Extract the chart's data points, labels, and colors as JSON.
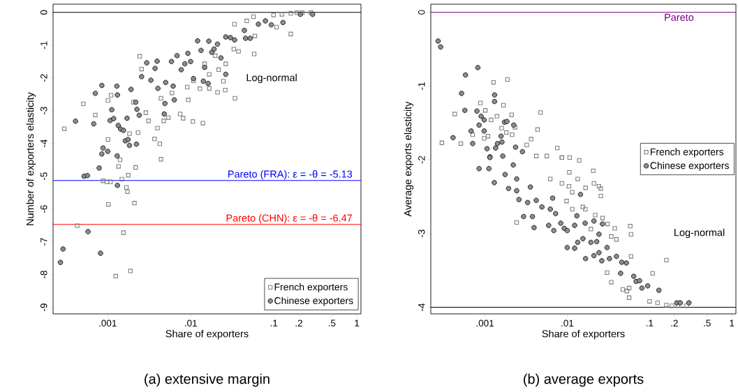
{
  "chart_data": [
    {
      "type": "scatter",
      "title": "(a) extensive margin",
      "xlabel": "Share of exporters",
      "ylabel": "Number of exporters elasticity",
      "log": "x",
      "grid": false,
      "legend": "bottom right",
      "xlim": [
        0.00022,
        1.12
      ],
      "ylim": [
        -9.2,
        0.25
      ],
      "xticks": [
        {
          "value": 0.001,
          "label": ".001"
        },
        {
          "value": 0.01,
          "label": ".01"
        },
        {
          "value": 0.1,
          "label": ".1"
        },
        {
          "value": 0.2,
          "label": ".2"
        },
        {
          "value": 0.5,
          "label": ".5"
        },
        1
      ],
      "yticks": [
        -9,
        -8,
        -7,
        -6,
        -5,
        -4,
        -3,
        -2,
        -1,
        0
      ],
      "ref_lines": [
        {
          "axis": "y",
          "value": 0,
          "color": "#000000"
        },
        {
          "axis": "y",
          "value": -5.13,
          "label": "Pareto (FRA): ε = -θ = -5.13",
          "color": "#0000ff"
        },
        {
          "axis": "y",
          "value": -6.47,
          "label": "Pareto (CHN): ε = -θ = -6.47",
          "color": "#ff0000"
        }
      ],
      "annotations": [
        "Log-normal"
      ],
      "series": [
        {
          "name": "French exporters",
          "color": "#7f7f7f",
          "marker": "square",
          "x": [
            0.0003,
            0.00051,
            0.00071,
            0.00101,
            0.0011,
            0.00101,
            0.00243,
            0.00256,
            0.00204,
            0.00183,
            0.00232,
            0.00288,
            0.0031,
            0.00366,
            0.00424,
            0.00397,
            0.00473,
            0.00538,
            0.00745,
            0.00811,
            0.00934,
            0.0106,
            0.014,
            0.00438,
            0.00594,
            0.00908,
            0.0108,
            0.0129,
            0.0167,
            0.0167,
            0.0147,
            0.0197,
            0.0217,
            0.0264,
            0.021,
            0.026,
            0.0247,
            0.0341,
            0.0337,
            0.033,
            0.0376,
            0.0472,
            0.0569,
            0.0592,
            0.058,
            0.0993,
            0.108,
            0.125,
            0.16,
            0.16,
            0.19,
            0.22,
            0.28,
            0.00043,
            0.00088,
            0.00098,
            0.00108,
            0.00102,
            0.00148,
            0.00168,
            0.00173,
            0.00177,
            0.0021,
            0.00155,
            0.00125,
            0.00188,
            0.00135,
            0.00217,
            0.00438,
            0.00141
          ],
          "values": [
            -3.55,
            -2.79,
            -3.13,
            -2.69,
            -2.53,
            -3.88,
            -1.34,
            -1.73,
            -2.74,
            -3.7,
            -3.67,
            -3.06,
            -3.31,
            -3.86,
            -4.01,
            -3.53,
            -3.31,
            -3.21,
            -3.1,
            -3.23,
            -2.67,
            -3.33,
            -3.38,
            -2.62,
            -2.46,
            -2.28,
            -2.09,
            -2.33,
            -2.32,
            -1.89,
            -1.57,
            -1.32,
            -1.75,
            -1.57,
            -2.44,
            -2.37,
            -2.1,
            -2.62,
            -0.36,
            -1.12,
            -1.19,
            -0.26,
            -0.13,
            -0.72,
            -1.27,
            -0.08,
            -0.45,
            -0.06,
            -0.66,
            -0.03,
            -0.01,
            -0.01,
            -0.01,
            -6.51,
            -5.14,
            -5.17,
            -5.17,
            -5.86,
            -5.09,
            -5.34,
            -5.47,
            -4.97,
            -5.82,
            -6.72,
            -8.05,
            -7.89,
            -4.7,
            -4.73,
            -4.48,
            -4.5
          ]
        },
        {
          "name": "Chinese exporters",
          "color": "#8c8c8c",
          "marker": "circle",
          "x": [
            0.00041,
            0.00068,
            0.00071,
            0.00085,
            0.00129,
            0.00131,
            0.00112,
            0.00107,
            0.00118,
            0.00134,
            0.00143,
            0.00155,
            0.00163,
            0.00176,
            0.00183,
            0.00222,
            0.00088,
            0.00085,
            0.001,
            0.0013,
            0.00171,
            0.00191,
            0.00218,
            0.00225,
            0.0024,
            0.00256,
            0.00295,
            0.00331,
            0.00372,
            0.00394,
            0.00403,
            0.0048,
            0.00489,
            0.00499,
            0.00586,
            0.00614,
            0.00634,
            0.00684,
            0.00769,
            0.00848,
            0.00923,
            0.00997,
            0.0108,
            0.0121,
            0.0133,
            0.0147,
            0.0165,
            0.0179,
            0.0191,
            0.021,
            0.0231,
            0.0264,
            0.0264,
            0.03,
            0.0337,
            0.0442,
            0.0457,
            0.052,
            0.0652,
            0.0792,
            0.0932,
            0.129,
            0.209,
            0.293,
            0.0142,
            0.0162,
            0.00027,
            0.00029,
            0.00058,
            0.00082,
            0.00052,
            0.00057,
            0.00079,
            0.00131
          ],
          "values": [
            -3.32,
            -3.4,
            -2.47,
            -2.23,
            -2.25,
            -2.52,
            -2.97,
            -3.3,
            -3.24,
            -3.45,
            -3.56,
            -3.6,
            -3.92,
            -3.88,
            -4.06,
            -4.02,
            -4.14,
            -4.32,
            -4.24,
            -4.38,
            -3.23,
            -2.35,
            -2.74,
            -2.96,
            -3.14,
            -1.96,
            -1.54,
            -2.07,
            -1.71,
            -1.49,
            -2.32,
            -3.1,
            -2.78,
            -2.14,
            -1.5,
            -2.25,
            -2.67,
            -1.32,
            -1.75,
            -1.57,
            -1.25,
            -1.5,
            -2.02,
            -0.87,
            -1.16,
            -1.68,
            -0.88,
            -1.22,
            -1.12,
            -0.97,
            -1.39,
            -0.75,
            -1.89,
            -0.77,
            -0.84,
            -0.55,
            -0.79,
            -0.79,
            -0.36,
            -0.26,
            -0.38,
            -0.31,
            -0.06,
            -0.06,
            -2.1,
            -2.17,
            -7.63,
            -7.22,
            -6.69,
            -7.35,
            -5.0,
            -4.98,
            -4.75,
            -5.28
          ]
        }
      ]
    },
    {
      "type": "scatter",
      "title": "(b) average exports",
      "xlabel": "Share of exporters",
      "ylabel": "Average exports elasticity",
      "log": "x",
      "grid": false,
      "legend": "right",
      "xlim": [
        0.00022,
        1.12
      ],
      "ylim": [
        -4.09,
        0.11
      ],
      "xticks": [
        {
          "value": 0.001,
          "label": ".001"
        },
        {
          "value": 0.01,
          "label": ".01"
        },
        {
          "value": 0.1,
          "label": ".1"
        },
        {
          "value": 0.2,
          "label": ".2"
        },
        {
          "value": 0.5,
          "label": ".5"
        },
        1
      ],
      "yticks": [
        -4,
        -3,
        -2,
        -1,
        0
      ],
      "ref_lines": [
        {
          "axis": "y",
          "value": 0,
          "label": "Pareto",
          "color": "#800080"
        },
        {
          "axis": "y",
          "value": -4,
          "color": "#000000"
        }
      ],
      "annotations": [
        "Log-normal"
      ],
      "series": [
        {
          "name": "French exporters",
          "color": "#7f7f7f",
          "marker": "square",
          "x": [
            0.0003,
            0.00043,
            0.00051,
            0.00071,
            0.00088,
            0.00101,
            0.00098,
            0.00109,
            0.00127,
            0.00188,
            0.00168,
            0.0014,
            0.00119,
            0.00211,
            0.0016,
            0.00182,
            0.00214,
            0.00232,
            0.00474,
            0.00436,
            0.00364,
            0.00322,
            0.00757,
            0.00421,
            0.00565,
            0.00861,
            0.0107,
            0.014,
            0.00243,
            0.00861,
            0.0106,
            0.00622,
            0.00861,
            0.0105,
            0.0115,
            0.0134,
            0.0167,
            0.0207,
            0.0211,
            0.0243,
            0.0256,
            0.0256,
            0.00982,
            0.0115,
            0.0155,
            0.0166,
            0.0219,
            0.0268,
            0.0309,
            0.0194,
            0.0378,
            0.0343,
            0.0396,
            0.0583,
            0.0596,
            0.0596,
            0.0305,
            0.0343,
            0.0474,
            0.053,
            0.0565,
            0.0565,
            0.1,
            0.109,
            0.125,
            0.16,
            0.16,
            0.187,
            0.221,
            0.282
          ],
          "values": [
            -1.77,
            -1.38,
            -1.78,
            -1.66,
            -1.23,
            -1.33,
            -1.71,
            -1.68,
            -0.95,
            -0.91,
            -1.26,
            -1.41,
            -1.46,
            -1.39,
            -1.57,
            -1.63,
            -1.66,
            -1.56,
            -1.36,
            -1.59,
            -1.72,
            -1.8,
            -1.84,
            -1.95,
            -1.95,
            -1.97,
            -1.97,
            -2.01,
            -2.85,
            -1.97,
            -2.17,
            -2.26,
            -2.32,
            -2.36,
            -2.44,
            -2.26,
            -2.38,
            -2.15,
            -2.32,
            -2.36,
            -2.39,
            -2.49,
            -2.56,
            -2.67,
            -2.64,
            -2.67,
            -2.75,
            -2.79,
            -2.87,
            -2.94,
            -2.93,
            -3.04,
            -3.08,
            -2.9,
            -3.01,
            -3.31,
            -3.53,
            -3.66,
            -3.76,
            -3.78,
            -3.74,
            -3.87,
            -3.92,
            -3.54,
            -3.94,
            -3.36,
            -3.97,
            -3.98,
            -3.98,
            -3.98
          ]
        },
        {
          "name": "Chinese exporters",
          "color": "#8c8c8c",
          "marker": "circle",
          "x": [
            0.00027,
            0.00029,
            0.00082,
            0.00058,
            0.00052,
            0.00057,
            0.00041,
            0.00071,
            0.00068,
            0.0008,
            0.00085,
            0.0009,
            0.00098,
            0.00098,
            0.00131,
            0.00131,
            0.00106,
            0.00135,
            0.00142,
            0.00157,
            0.00161,
            0.00173,
            0.00185,
            0.00224,
            0.00236,
            0.00286,
            0.00115,
            0.00085,
            0.00112,
            0.0013,
            0.00115,
            0.00165,
            0.00176,
            0.00194,
            0.00221,
            0.00243,
            0.00243,
            0.00259,
            0.00295,
            0.00378,
            0.00395,
            0.0033,
            0.00357,
            0.0042,
            0.00493,
            0.00595,
            0.00687,
            0.00623,
            0.00665,
            0.00723,
            0.00834,
            0.00919,
            0.01,
            0.01,
            0.0123,
            0.0123,
            0.0134,
            0.0145,
            0.0131,
            0.0155,
            0.0167,
            0.0165,
            0.0194,
            0.0211,
            0.0211,
            0.0228,
            0.0243,
            0.0243,
            0.0263,
            0.0268,
            0.0305,
            0.0326,
            0.0396,
            0.0459,
            0.0523,
            0.0445,
            0.0643,
            0.0687,
            0.0757,
            0.0807,
            0.0949,
            0.13,
            0.214,
            0.236,
            0.301
          ],
          "values": [
            -0.39,
            -0.47,
            -0.75,
            -0.85,
            -1.1,
            -1.33,
            -1.7,
            -1.78,
            -1.61,
            -1.34,
            -1.53,
            -1.41,
            -1.46,
            -1.61,
            -1.12,
            -1.21,
            -1.85,
            -1.84,
            -1.78,
            -1.68,
            -1.76,
            -1.49,
            -1.48,
            -1.53,
            -1.83,
            -1.89,
            -1.96,
            -2.12,
            -2.12,
            -2.31,
            -1.97,
            -1.95,
            -2.2,
            -2.39,
            -2.07,
            -2.26,
            -2.42,
            -2.54,
            -2.77,
            -2.77,
            -2.92,
            -2.58,
            -2.37,
            -2.55,
            -2.64,
            -2.89,
            -2.96,
            -2.67,
            -2.52,
            -2.73,
            -2.86,
            -2.93,
            -2.96,
            -3.19,
            -3.2,
            -2.89,
            -3.12,
            -2.47,
            -2.76,
            -3.07,
            -3.34,
            -2.86,
            -3.12,
            -2.83,
            -3.3,
            -3.11,
            -3.26,
            -3.01,
            -3.37,
            -2.87,
            -3.19,
            -3.34,
            -3.31,
            -3.39,
            -3.4,
            -3.54,
            -3.58,
            -3.65,
            -3.64,
            -3.74,
            -3.71,
            -3.77,
            -3.94,
            -3.94,
            -3.94
          ]
        }
      ]
    }
  ]
}
